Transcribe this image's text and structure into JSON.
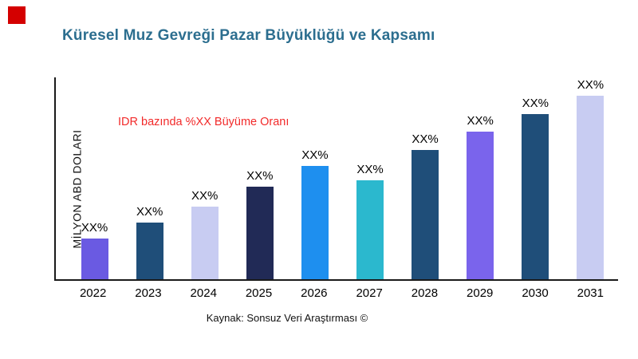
{
  "logo": {
    "color": "#d40000"
  },
  "header": {
    "title": "Küresel Muz Gevreği Pazar Büyüklüğü ve Kapsamı",
    "title_color": "#2c6e8f"
  },
  "annotation": {
    "text": "IDR bazında %XX Büyüme Oranı",
    "color": "#f22a2a"
  },
  "footer": {
    "source": "Kaynak: Sonsuz Veri Araştırması ©"
  },
  "chart_data": {
    "type": "bar",
    "title": "Küresel Muz Gevreği Pazar Büyüklüğü ve Kapsamı",
    "xlabel": "",
    "ylabel": "MİLYON ABD DOLARI",
    "categories": [
      "2022",
      "2023",
      "2024",
      "2025",
      "2026",
      "2027",
      "2028",
      "2029",
      "2030",
      "2031"
    ],
    "values": [
      20,
      28,
      36,
      46,
      56,
      49,
      64,
      73,
      82,
      91
    ],
    "bar_labels": [
      "XX%",
      "XX%",
      "XX%",
      "XX%",
      "XX%",
      "XX%",
      "XX%",
      "XX%",
      "XX%",
      "XX%"
    ],
    "bar_colors": [
      "#6a5ae2",
      "#1f4e79",
      "#c8ccf2",
      "#212a56",
      "#1e8fef",
      "#2bb8ce",
      "#1f4e79",
      "#7a64ec",
      "#1f4e79",
      "#c8ccf2"
    ],
    "ylim": [
      0,
      100
    ],
    "grid": false,
    "legend": false
  }
}
